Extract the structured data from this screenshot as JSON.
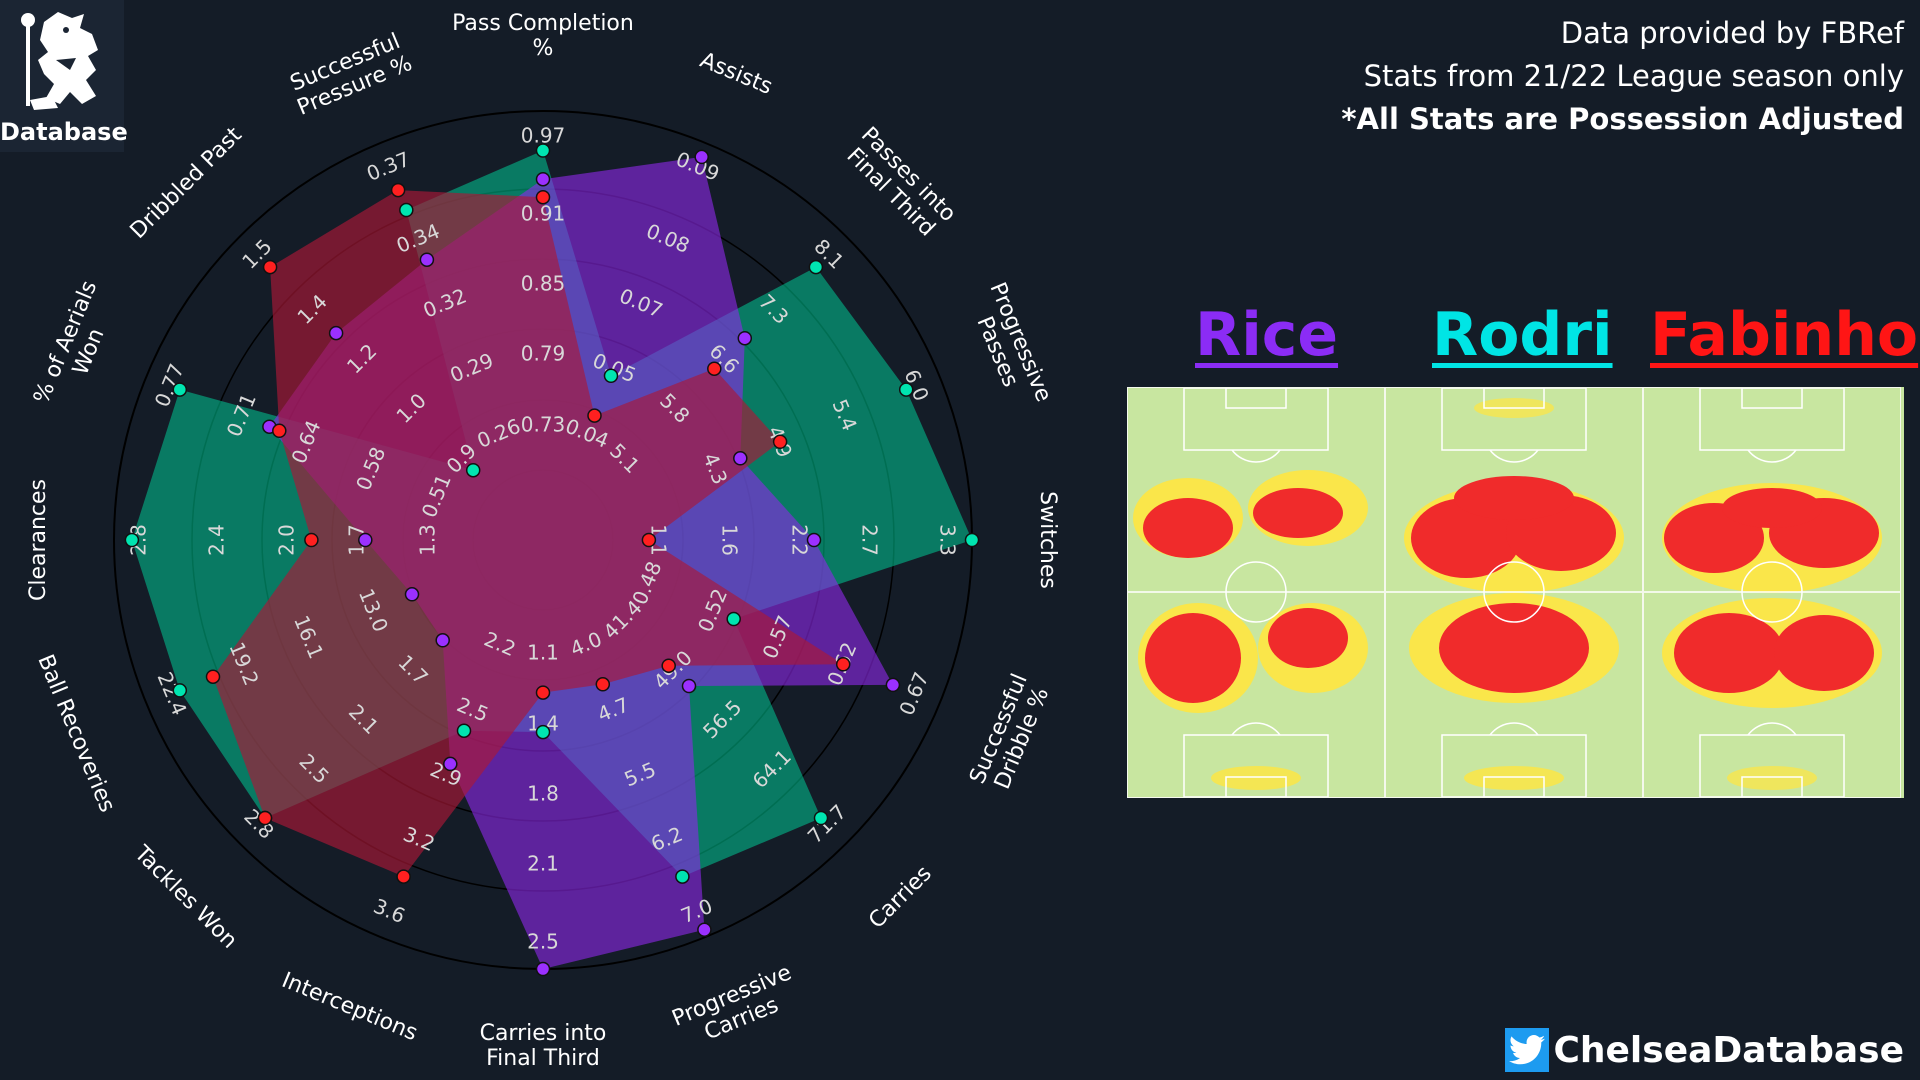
{
  "logo": {
    "text": "Database",
    "icon": "chelsea-lion-crest-icon"
  },
  "credits": {
    "line1": "Data provided by FBRef",
    "line2": "Stats from 21/22 League season only",
    "line3": "*All Stats are Possession Adjusted"
  },
  "players": [
    {
      "name": "Rice",
      "color": "#8b2cf5"
    },
    {
      "name": "Rodri",
      "color": "#00e5e5"
    },
    {
      "name": "Fabinho",
      "color": "#ff1515"
    }
  ],
  "handle": {
    "text": "ChelseaDatabase",
    "icon": "twitter-bird-icon"
  },
  "chart_data": {
    "type": "radar",
    "title": "",
    "categories": [
      "Pass Completion\n%",
      "Assists",
      "Passes into\nFinal Third",
      "Progressive\nPasses",
      "Switches",
      "Successful\nDribble %",
      "Carries",
      "Progressive\nCarries",
      "Carries into\nFinal Third",
      "Interceptions",
      "Tackles Won",
      "Ball Recoveries",
      "Clearances",
      "% of Aerials\nWon",
      "Dribbled Past",
      "Successful\nPressure %"
    ],
    "ticks": [
      [
        "0.73",
        "0.79",
        "0.85",
        "0.91",
        "0.97"
      ],
      [
        "0.04",
        "0.05",
        "0.07",
        "0.08",
        "0.09"
      ],
      [
        "5.1",
        "5.8",
        "6.6",
        "7.3",
        "8.1"
      ],
      [
        "4.3",
        "4.9",
        "5.4",
        "6.0"
      ],
      [
        "1.1",
        "1.6",
        "2.2",
        "2.7",
        "3.3"
      ],
      [
        "0.48",
        "0.52",
        "0.57",
        "0.62",
        "0.67"
      ],
      [
        "41.4",
        "49.0",
        "56.5",
        "64.1",
        "71.7"
      ],
      [
        "4.0",
        "4.7",
        "5.5",
        "6.2",
        "7.0"
      ],
      [
        "1.1",
        "1.4",
        "1.8",
        "2.1",
        "2.5"
      ],
      [
        "2.2",
        "2.5",
        "2.9",
        "3.2",
        "3.6"
      ],
      [
        "1.7",
        "2.1",
        "2.5",
        "2.8"
      ],
      [
        "13.0",
        "16.1",
        "19.2",
        "22.4"
      ],
      [
        "1.3",
        "1.7",
        "2.0",
        "2.4",
        "2.8"
      ],
      [
        "0.51",
        "0.58",
        "0.64",
        "0.71",
        "0.77"
      ],
      [
        "0.9",
        "1.0",
        "1.2",
        "1.4",
        "1.5"
      ],
      [
        "0.26",
        "0.29",
        "0.32",
        "0.34",
        "0.37"
      ]
    ],
    "series": [
      {
        "name": "Rodri",
        "color": "#00e5b0",
        "fill": "rgba(0,200,150,0.55)",
        "values": [
          0.89,
          0.3,
          0.88,
          0.9,
          1.0,
          0.38,
          0.9,
          0.82,
          0.34,
          0.38,
          0.9,
          0.9,
          0.95,
          0.9,
          0.08,
          0.8
        ]
      },
      {
        "name": "Rice",
        "color": "#9b30ff",
        "fill": "rgba(140,40,230,0.62)",
        "values": [
          0.81,
          0.96,
          0.6,
          0.4,
          0.56,
          0.86,
          0.38,
          0.98,
          1.0,
          0.48,
          0.2,
          0.2,
          0.3,
          0.63,
          0.62,
          0.65
        ]
      },
      {
        "name": "Fabinho",
        "color": "#ff2020",
        "fill": "rgba(170,25,55,0.65)",
        "values": [
          0.76,
          0.18,
          0.48,
          0.52,
          0.1,
          0.71,
          0.3,
          0.24,
          0.23,
          0.82,
          0.9,
          0.8,
          0.45,
          0.6,
          0.88,
          0.86
        ]
      }
    ]
  }
}
